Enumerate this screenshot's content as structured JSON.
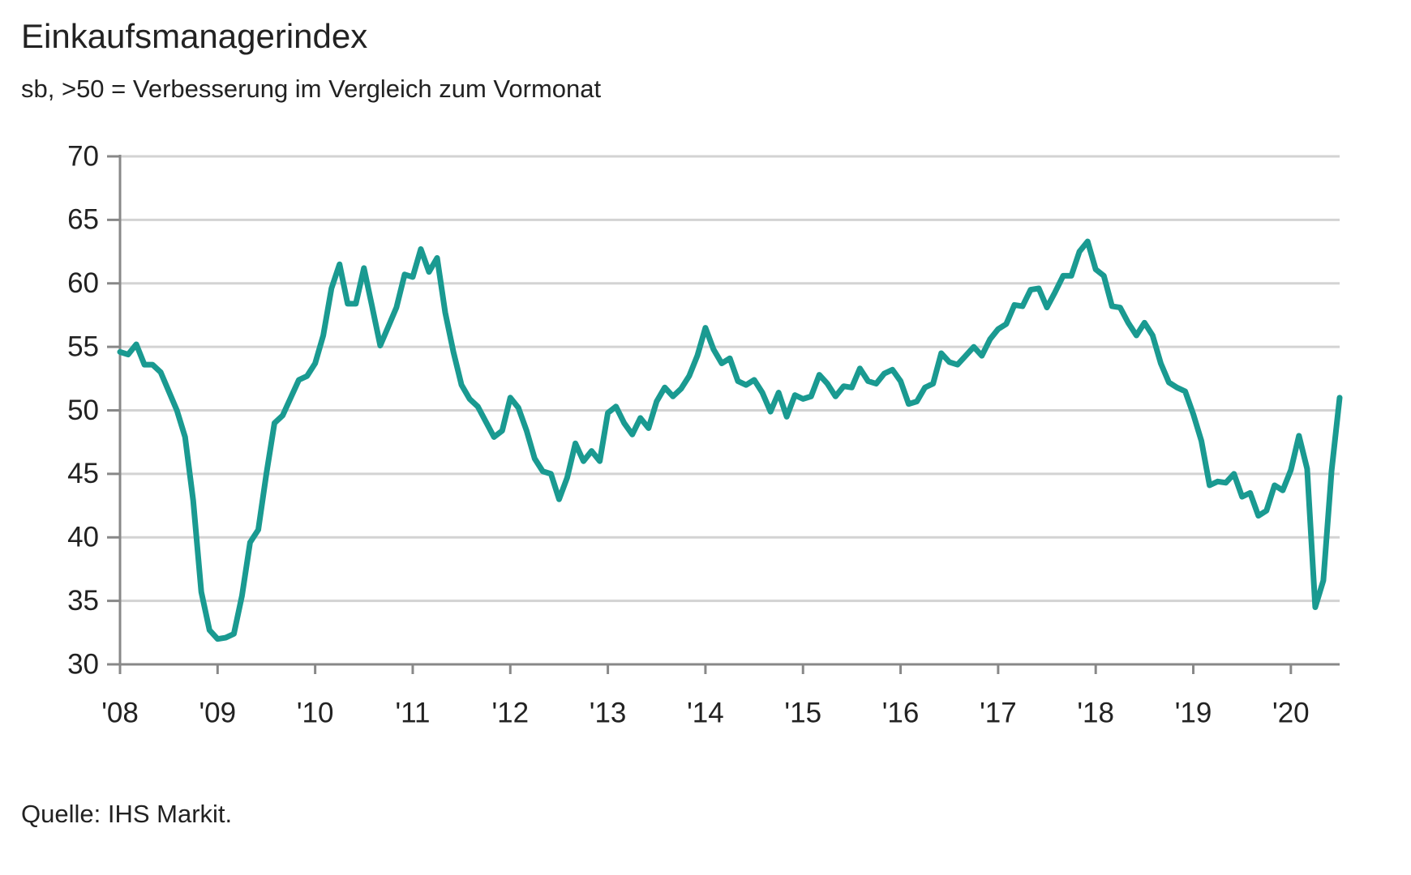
{
  "chart_data": {
    "type": "line",
    "title": "Einkaufsmanagerindex",
    "subtitle": "sb, >50 = Verbesserung im Vergleich zum Vormonat",
    "source": "Quelle: IHS Markit.",
    "color": "#1a9a91",
    "grid": true,
    "xlim": [
      2008,
      2020.5
    ],
    "ylim": [
      30,
      70
    ],
    "yticks": [
      30,
      35,
      40,
      45,
      50,
      55,
      60,
      65,
      70
    ],
    "xticks": [
      {
        "value": 2008,
        "label": "'08"
      },
      {
        "value": 2009,
        "label": "'09"
      },
      {
        "value": 2010,
        "label": "'10"
      },
      {
        "value": 2011,
        "label": "'11"
      },
      {
        "value": 2012,
        "label": "'12"
      },
      {
        "value": 2013,
        "label": "'13"
      },
      {
        "value": 2014,
        "label": "'14"
      },
      {
        "value": 2015,
        "label": "'15"
      },
      {
        "value": 2016,
        "label": "'16"
      },
      {
        "value": 2017,
        "label": "'17"
      },
      {
        "value": 2018,
        "label": "'18"
      },
      {
        "value": 2019,
        "label": "'19"
      },
      {
        "value": 2020,
        "label": "'20"
      }
    ],
    "x": [
      2008,
      2008.083,
      2008.167,
      2008.25,
      2008.333,
      2008.417,
      2008.5,
      2008.583,
      2008.667,
      2008.75,
      2008.833,
      2008.917,
      2009,
      2009.083,
      2009.167,
      2009.25,
      2009.333,
      2009.417,
      2009.5,
      2009.583,
      2009.667,
      2009.75,
      2009.833,
      2009.917,
      2010,
      2010.083,
      2010.167,
      2010.25,
      2010.333,
      2010.417,
      2010.5,
      2010.583,
      2010.667,
      2010.75,
      2010.833,
      2010.917,
      2011,
      2011.083,
      2011.167,
      2011.25,
      2011.333,
      2011.417,
      2011.5,
      2011.583,
      2011.667,
      2011.75,
      2011.833,
      2011.917,
      2012,
      2012.083,
      2012.167,
      2012.25,
      2012.333,
      2012.417,
      2012.5,
      2012.583,
      2012.667,
      2012.75,
      2012.833,
      2012.917,
      2013,
      2013.083,
      2013.167,
      2013.25,
      2013.333,
      2013.417,
      2013.5,
      2013.583,
      2013.667,
      2013.75,
      2013.833,
      2013.917,
      2014,
      2014.083,
      2014.167,
      2014.25,
      2014.333,
      2014.417,
      2014.5,
      2014.583,
      2014.667,
      2014.75,
      2014.833,
      2014.917,
      2015,
      2015.083,
      2015.167,
      2015.25,
      2015.333,
      2015.417,
      2015.5,
      2015.583,
      2015.667,
      2015.75,
      2015.833,
      2015.917,
      2016,
      2016.083,
      2016.167,
      2016.25,
      2016.333,
      2016.417,
      2016.5,
      2016.583,
      2016.667,
      2016.75,
      2016.833,
      2016.917,
      2017,
      2017.083,
      2017.167,
      2017.25,
      2017.333,
      2017.417,
      2017.5,
      2017.583,
      2017.667,
      2017.75,
      2017.833,
      2017.917,
      2018,
      2018.083,
      2018.167,
      2018.25,
      2018.333,
      2018.417,
      2018.5,
      2018.583,
      2018.667,
      2018.75,
      2018.833,
      2018.917,
      2019,
      2019.083,
      2019.167,
      2019.25,
      2019.333,
      2019.417,
      2019.5,
      2019.583,
      2019.667,
      2019.75,
      2019.833,
      2019.917,
      2020,
      2020.083,
      2020.167,
      2020.25,
      2020.333,
      2020.417,
      2020.5
    ],
    "values": [
      54.6,
      54.4,
      55.2,
      53.6,
      53.6,
      53.0,
      51.5,
      50.0,
      47.9,
      42.9,
      35.7,
      32.7,
      32.0,
      32.1,
      32.4,
      35.4,
      39.6,
      40.6,
      45.0,
      49.0,
      49.6,
      51.0,
      52.4,
      52.7,
      53.7,
      55.9,
      59.6,
      61.5,
      58.4,
      58.4,
      61.2,
      58.2,
      55.1,
      56.6,
      58.1,
      60.7,
      60.5,
      62.7,
      60.9,
      62.0,
      57.7,
      54.6,
      52.0,
      50.9,
      50.3,
      49.1,
      47.9,
      48.4,
      51.0,
      50.2,
      48.4,
      46.2,
      45.2,
      45.0,
      43.0,
      44.7,
      47.4,
      46.0,
      46.8,
      46.0,
      49.8,
      50.3,
      49.0,
      48.1,
      49.4,
      48.6,
      50.7,
      51.8,
      51.1,
      51.7,
      52.7,
      54.3,
      56.5,
      54.8,
      53.7,
      54.1,
      52.3,
      52.0,
      52.4,
      51.4,
      49.9,
      51.4,
      49.5,
      51.2,
      50.9,
      51.1,
      52.8,
      52.1,
      51.1,
      51.9,
      51.8,
      53.3,
      52.3,
      52.1,
      52.9,
      53.2,
      52.3,
      50.5,
      50.7,
      51.8,
      52.1,
      54.5,
      53.8,
      53.6,
      54.3,
      55.0,
      54.3,
      55.6,
      56.4,
      56.8,
      58.3,
      58.2,
      59.5,
      59.6,
      58.1,
      59.3,
      60.6,
      60.6,
      62.5,
      63.3,
      61.1,
      60.6,
      58.2,
      58.1,
      56.9,
      55.9,
      56.9,
      55.9,
      53.7,
      52.2,
      51.8,
      51.5,
      49.7,
      47.6,
      44.1,
      44.4,
      44.3,
      45.0,
      43.2,
      43.5,
      41.7,
      42.1,
      44.1,
      43.7,
      45.3,
      48.0,
      45.4,
      34.5,
      36.6,
      45.2,
      51.0
    ]
  }
}
